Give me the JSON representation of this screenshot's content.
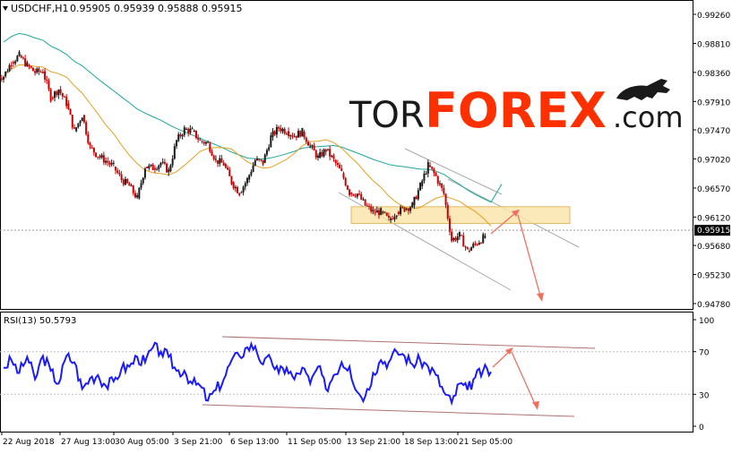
{
  "header": {
    "symbol_label": "USDCHF,H1",
    "ohlc_values": "0.95905 0.95939 0.95888 0.95915",
    "dropdown_icon": "triangle-down-icon"
  },
  "logo": {
    "text_tor": "TOR",
    "text_forex": "FOREX",
    "text_com": ".com",
    "bull_icon": "bull-icon"
  },
  "colors": {
    "candle_up": "#1a1a1a",
    "candle_down": "#cc0000",
    "ma_fast": "#e6a020",
    "ma_slow": "#19a89a",
    "rsi_line": "#1a1aff",
    "channel_price": "#a8a8a8",
    "channel_rsi": "#b07070",
    "forecast_arrow": "#f07060",
    "zone_fill": "#fbe3a8",
    "zone_stroke": "#e2b860",
    "logo_tor": "#1a1a1a",
    "logo_forex": "#ff3000"
  },
  "chart_data": [
    {
      "type": "candlestick",
      "title": "USDCHF,H1",
      "series": [
        {
          "values": [
            0.983,
            0.9852,
            0.9862,
            0.9847,
            0.9836,
            0.9838,
            0.9797,
            0.981,
            0.9788,
            0.9745,
            0.977,
            0.972,
            0.9707,
            0.9699,
            0.969,
            0.967,
            0.966,
            0.9641,
            0.969,
            0.9688,
            0.9696,
            0.9683,
            0.973,
            0.9748,
            0.9745,
            0.973,
            0.9726,
            0.97,
            0.9694,
            0.9666,
            0.965,
            0.967,
            0.97,
            0.9696,
            0.9736,
            0.975,
            0.9745,
            0.9738,
            0.9744,
            0.9722,
            0.9704,
            0.9716,
            0.97,
            0.968,
            0.965,
            0.9648,
            0.963,
            0.962,
            0.962,
            0.9607,
            0.962,
            0.9625,
            0.963,
            0.966,
            0.9692,
            0.9675,
            0.9648,
            0.9576,
            0.9584,
            0.956,
            0.957,
            0.958,
            0.95915
          ]
        }
      ],
      "ylim": [
        0.9478,
        0.9926
      ],
      "y_ticks": [
        "0.99260",
        "0.98810",
        "0.98360",
        "0.97910",
        "0.97470",
        "0.97020",
        "0.96570",
        "0.96120",
        "0.95680",
        "0.95230",
        "0.94780"
      ],
      "current_price_label": "0.95915",
      "x_ticks": [
        "22 Aug 2018",
        "27 Aug 13:00",
        "30 Aug 05:00",
        "3 Sep 21:00",
        "6 Sep 13:00",
        "11 Sep 05:00",
        "13 Sep 21:00",
        "18 Sep 13:00",
        "21 Sep 05:00"
      ],
      "moving_average_fast_note": "",
      "support_zone": {
        "low": 0.9602,
        "high": 0.9628
      },
      "grid": false
    },
    {
      "type": "line",
      "title": "RSI(13) 50.5793",
      "series": [
        {
          "values": [
            55,
            62,
            50,
            65,
            44,
            66,
            52,
            40,
            66,
            60,
            35,
            45,
            48,
            38,
            42,
            54,
            56,
            65,
            60,
            74,
            70,
            65,
            52,
            52,
            40,
            38,
            24,
            34,
            44,
            62,
            66,
            74,
            75,
            58,
            63,
            50,
            55,
            44,
            55,
            40,
            56,
            35,
            48,
            60,
            56,
            32,
            28,
            50,
            62,
            60,
            70,
            66,
            58,
            62,
            56,
            48,
            32,
            22,
            40,
            34,
            46,
            52,
            51
          ]
        }
      ],
      "ylim": [
        0,
        100
      ],
      "y_ticks": [
        "100",
        "70",
        "30",
        "0"
      ],
      "levels": [
        70,
        30
      ],
      "grid": false
    }
  ]
}
